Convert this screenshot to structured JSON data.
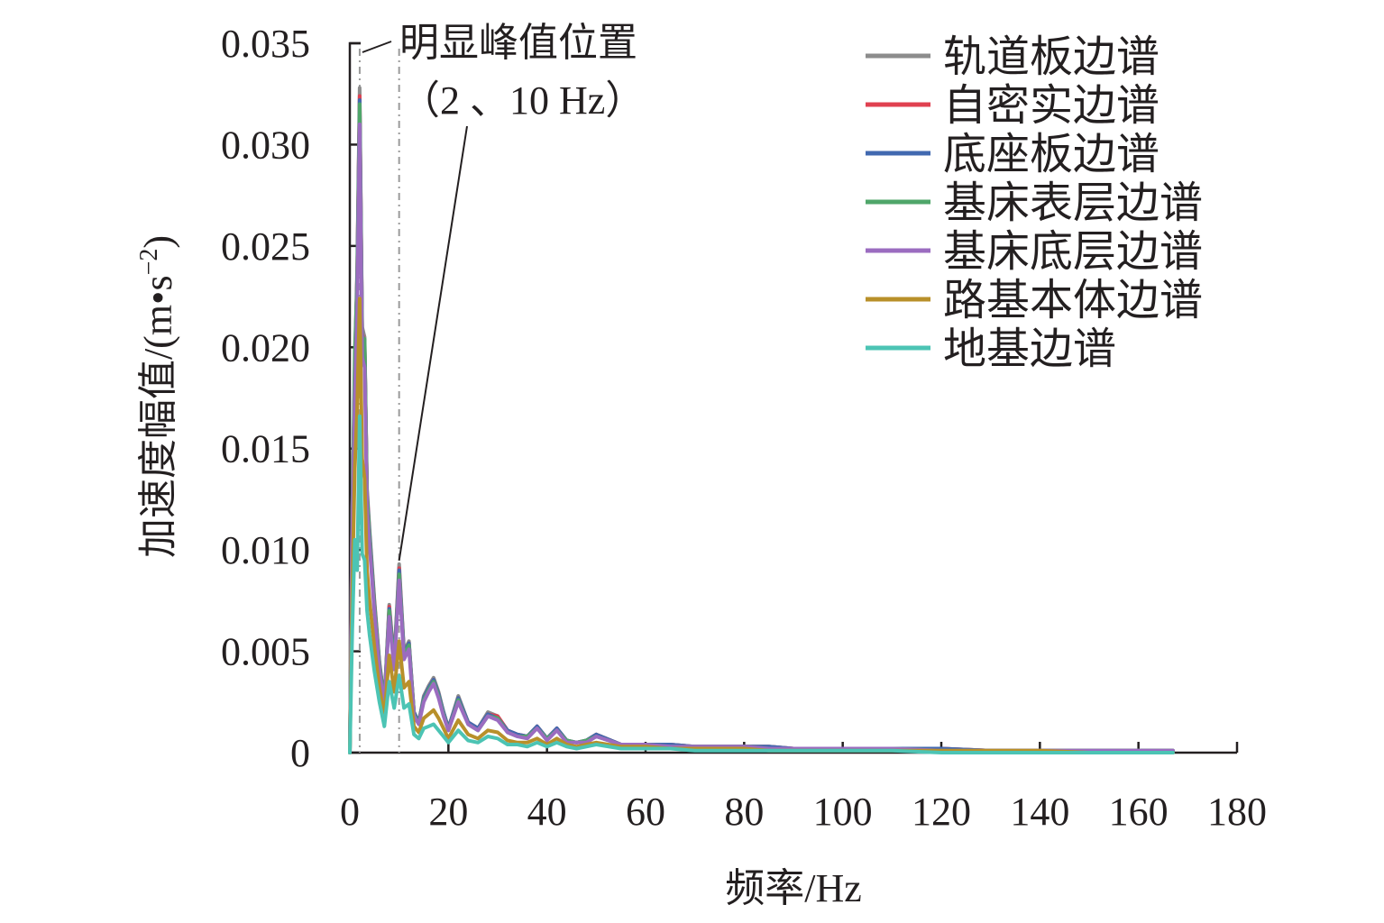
{
  "chart_data": {
    "type": "line",
    "xlabel": "频率/Hz",
    "ylabel_main": "加速度幅值/(m•s",
    "ylabel_sup": "−2",
    "ylabel_close": ")",
    "xlim": [
      0,
      180
    ],
    "ylim": [
      0,
      0.035
    ],
    "xticks": [
      0,
      20,
      40,
      60,
      80,
      100,
      120,
      140,
      160,
      180
    ],
    "xtick_labels": [
      "0",
      "20",
      "40",
      "60",
      "80",
      "100",
      "120",
      "140",
      "160",
      "180"
    ],
    "yticks": [
      0,
      0.005,
      0.01,
      0.015,
      0.02,
      0.025,
      0.03,
      0.035
    ],
    "ytick_labels": [
      "0",
      "0.005",
      "0.010",
      "0.015",
      "0.020",
      "0.025",
      "0.030",
      "0.035"
    ],
    "grid": false,
    "legend_position": "top-right",
    "annotation": {
      "line1": "明显峰值位置",
      "line2": "（2 、10 Hz）",
      "peaks_x": [
        2,
        10
      ]
    },
    "x": [
      0,
      0.5,
      1,
      1.5,
      2,
      2.5,
      3,
      3.5,
      4,
      5,
      6,
      7,
      8,
      9,
      10,
      11,
      12,
      13,
      14,
      15,
      16,
      17,
      18,
      19,
      20,
      22,
      24,
      26,
      28,
      30,
      32,
      34,
      36,
      38,
      40,
      42,
      44,
      46,
      48,
      50,
      55,
      60,
      65,
      70,
      75,
      80,
      85,
      90,
      95,
      100,
      110,
      120,
      130,
      140,
      150,
      160,
      167
    ],
    "series": [
      {
        "name": "轨道板边谱",
        "color": "#8c8c8c",
        "values": [
          0,
          0.012,
          0.019,
          0.024,
          0.0328,
          0.021,
          0.0205,
          0.013,
          0.011,
          0.0075,
          0.0045,
          0.0025,
          0.0073,
          0.0045,
          0.0093,
          0.005,
          0.0055,
          0.002,
          0.0015,
          0.0028,
          0.0033,
          0.0037,
          0.003,
          0.002,
          0.0012,
          0.0028,
          0.0015,
          0.0012,
          0.002,
          0.0018,
          0.0011,
          0.0009,
          0.0008,
          0.0013,
          0.0007,
          0.0012,
          0.0006,
          0.0005,
          0.0006,
          0.0009,
          0.0004,
          0.0004,
          0.0004,
          0.0003,
          0.0003,
          0.0003,
          0.0003,
          0.0002,
          0.0002,
          0.0002,
          0.0002,
          0.0002,
          0.0001,
          0.0001,
          0.0001,
          0.0001,
          0.0001
        ]
      },
      {
        "name": "自密实边谱",
        "color": "#e04050",
        "values": [
          0,
          0.0118,
          0.0187,
          0.0237,
          0.0324,
          0.0207,
          0.0202,
          0.0128,
          0.0108,
          0.0074,
          0.0044,
          0.0025,
          0.0072,
          0.0044,
          0.0091,
          0.0049,
          0.0054,
          0.002,
          0.0015,
          0.0027,
          0.0032,
          0.0036,
          0.0029,
          0.002,
          0.0012,
          0.0027,
          0.0015,
          0.0012,
          0.0019,
          0.0018,
          0.0011,
          0.0009,
          0.0008,
          0.0013,
          0.0007,
          0.0012,
          0.0006,
          0.0005,
          0.0006,
          0.0009,
          0.0004,
          0.0004,
          0.0004,
          0.0003,
          0.0003,
          0.0003,
          0.0003,
          0.0002,
          0.0002,
          0.0002,
          0.0002,
          0.0002,
          0.0001,
          0.0001,
          0.0001,
          0.0001,
          0.0001
        ]
      },
      {
        "name": "底座板边谱",
        "color": "#4169b0",
        "values": [
          0,
          0.0117,
          0.0186,
          0.0236,
          0.0322,
          0.0206,
          0.0201,
          0.0127,
          0.0108,
          0.0073,
          0.0044,
          0.0025,
          0.0071,
          0.0044,
          0.009,
          0.0049,
          0.0054,
          0.002,
          0.0015,
          0.0027,
          0.0032,
          0.0036,
          0.0029,
          0.002,
          0.0012,
          0.0027,
          0.0015,
          0.0012,
          0.0019,
          0.0017,
          0.0011,
          0.0009,
          0.0008,
          0.0013,
          0.0007,
          0.0012,
          0.0006,
          0.0005,
          0.0006,
          0.0009,
          0.0004,
          0.0004,
          0.0004,
          0.0003,
          0.0003,
          0.0003,
          0.0003,
          0.0002,
          0.0002,
          0.0002,
          0.0002,
          0.0002,
          0.0001,
          0.0001,
          0.0001,
          0.0001,
          0.0001
        ]
      },
      {
        "name": "基床表层边谱",
        "color": "#4fa66a",
        "values": [
          0,
          0.0115,
          0.0198,
          0.0232,
          0.032,
          0.0205,
          0.0204,
          0.0126,
          0.0106,
          0.0072,
          0.0043,
          0.0024,
          0.007,
          0.0043,
          0.0088,
          0.0048,
          0.0053,
          0.0019,
          0.0014,
          0.0026,
          0.0031,
          0.0035,
          0.0028,
          0.0019,
          0.0011,
          0.0026,
          0.0014,
          0.0011,
          0.0018,
          0.0017,
          0.001,
          0.0008,
          0.0008,
          0.0012,
          0.0007,
          0.0011,
          0.0006,
          0.0005,
          0.0006,
          0.0008,
          0.0004,
          0.0004,
          0.0003,
          0.0003,
          0.0003,
          0.0003,
          0.0002,
          0.0002,
          0.0002,
          0.0002,
          0.0002,
          0.0001,
          0.0001,
          0.0001,
          0.0001,
          0.0001,
          0.0001
        ]
      },
      {
        "name": "基床底层边谱",
        "color": "#9b6cc0",
        "values": [
          0,
          0.011,
          0.0175,
          0.022,
          0.031,
          0.0195,
          0.019,
          0.012,
          0.0102,
          0.0069,
          0.0041,
          0.0023,
          0.0067,
          0.0041,
          0.0085,
          0.0046,
          0.0051,
          0.0018,
          0.0014,
          0.0025,
          0.003,
          0.0034,
          0.0027,
          0.0018,
          0.0011,
          0.0025,
          0.0014,
          0.0011,
          0.0018,
          0.0016,
          0.001,
          0.0008,
          0.0007,
          0.0012,
          0.0006,
          0.0011,
          0.0005,
          0.0005,
          0.0005,
          0.0008,
          0.0004,
          0.0004,
          0.0003,
          0.0003,
          0.0003,
          0.0003,
          0.0002,
          0.0002,
          0.0002,
          0.0002,
          0.0002,
          0.0001,
          0.0001,
          0.0001,
          0.0001,
          0.0001,
          0.0001
        ]
      },
      {
        "name": "路基本体边谱",
        "color": "#b8902a",
        "values": [
          0,
          0.008,
          0.014,
          0.017,
          0.0224,
          0.0145,
          0.0135,
          0.009,
          0.0075,
          0.0052,
          0.0032,
          0.0018,
          0.0048,
          0.003,
          0.0055,
          0.0032,
          0.0035,
          0.0013,
          0.001,
          0.0017,
          0.0019,
          0.0021,
          0.0017,
          0.0012,
          0.0007,
          0.0016,
          0.0009,
          0.0007,
          0.0011,
          0.001,
          0.0006,
          0.0005,
          0.0005,
          0.0007,
          0.0004,
          0.0007,
          0.0004,
          0.0003,
          0.0004,
          0.0005,
          0.0003,
          0.0003,
          0.0002,
          0.0002,
          0.0002,
          0.0002,
          0.0001,
          0.0001,
          0.0001,
          0.0001,
          0.0001,
          0.0001,
          0.0001,
          0.0001,
          0,
          0,
          0
        ]
      },
      {
        "name": "地基边谱",
        "color": "#4cc4b4",
        "values": [
          0,
          0.006,
          0.0105,
          0.009,
          0.0166,
          0.0098,
          0.0095,
          0.007,
          0.0058,
          0.004,
          0.0025,
          0.0013,
          0.0035,
          0.0022,
          0.0038,
          0.0022,
          0.0024,
          0.0009,
          0.0007,
          0.0012,
          0.0013,
          0.0014,
          0.0011,
          0.0008,
          0.0005,
          0.0011,
          0.0006,
          0.0005,
          0.0008,
          0.0007,
          0.0004,
          0.0004,
          0.0003,
          0.0005,
          0.0003,
          0.0005,
          0.0003,
          0.0002,
          0.0003,
          0.0004,
          0.0002,
          0.0002,
          0.0002,
          0.0001,
          0.0001,
          0.0001,
          0.0001,
          0.0001,
          0.0001,
          0.0001,
          0.0001,
          0,
          0,
          0,
          0,
          0,
          0
        ]
      }
    ]
  }
}
